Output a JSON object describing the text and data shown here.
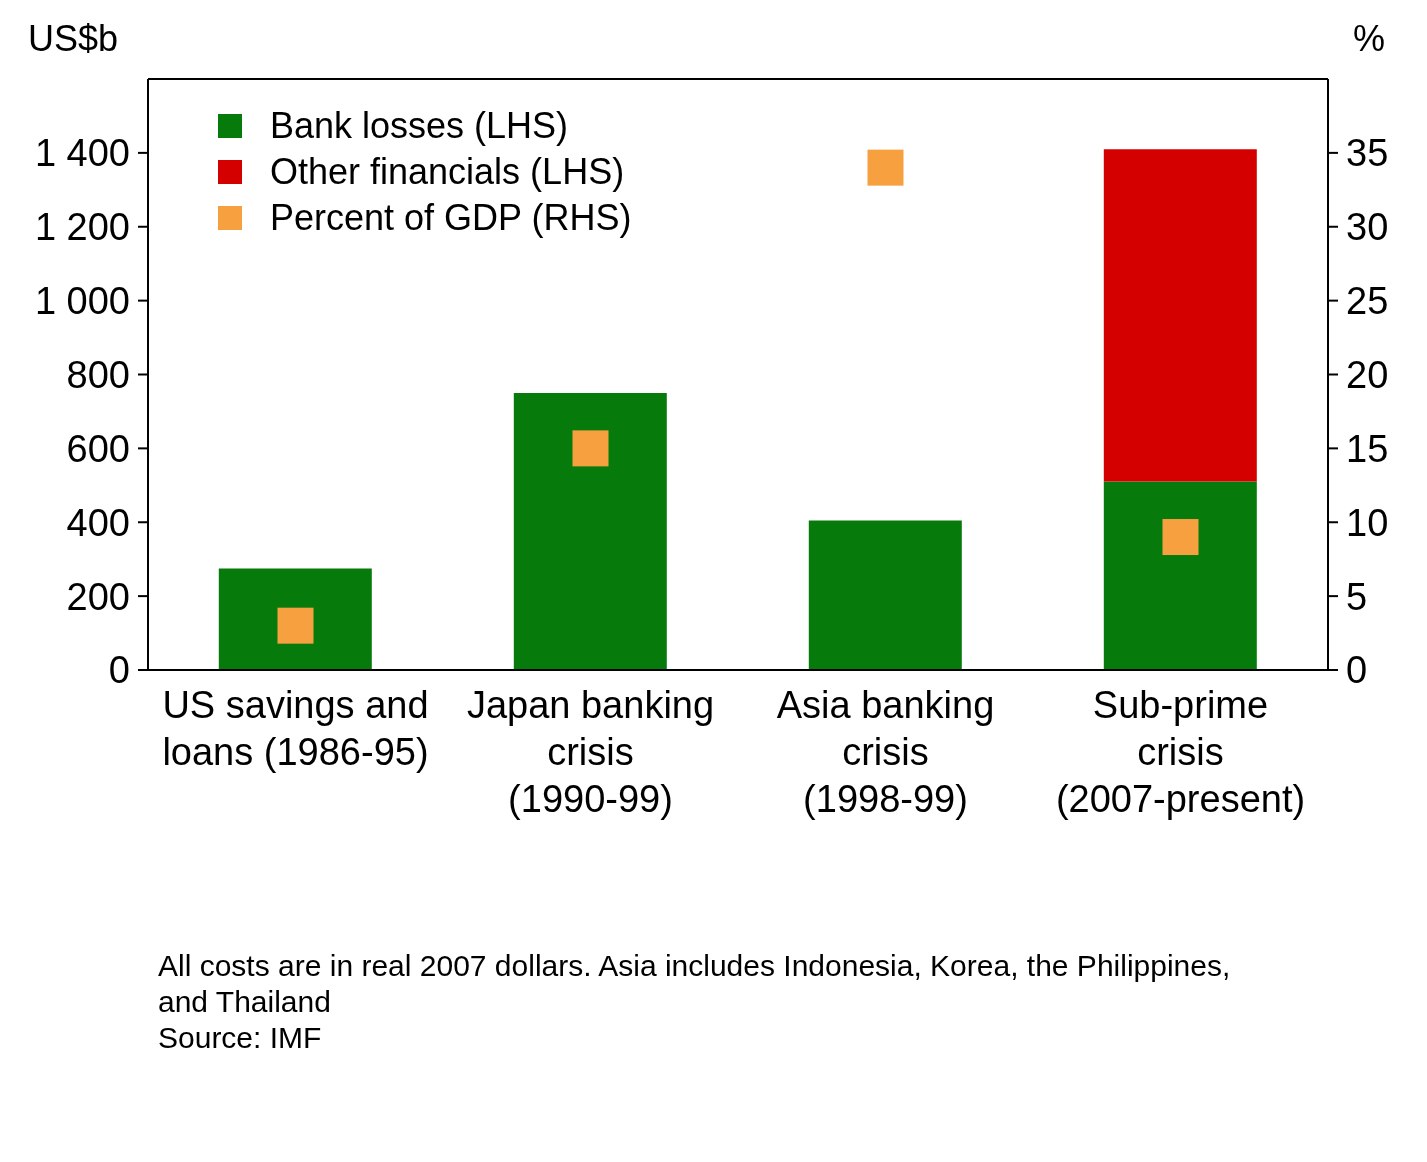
{
  "chart_data": {
    "type": "bar",
    "stacked": true,
    "categories": [
      "US savings and loans (1986-95)",
      "Japan banking crisis (1990-99)",
      "Asia banking crisis (1998-99)",
      "Sub-prime crisis (2007-present)"
    ],
    "series": [
      {
        "name": "Bank losses (LHS)",
        "color": "#067a0a",
        "values": [
          275,
          750,
          405,
          510
        ]
      },
      {
        "name": "Other financials (LHS)",
        "color": "#d40000",
        "values": [
          null,
          null,
          null,
          900
        ]
      },
      {
        "name": "Percent of GDP (RHS)",
        "type": "scatter",
        "axis": "y2",
        "color": "#f7a040",
        "marker": "square",
        "values": [
          3,
          15,
          34,
          9
        ]
      }
    ],
    "ylabel": "US$b",
    "y2label": "%",
    "ylim": [
      0,
      1600
    ],
    "yticks": [
      {
        "value": 0,
        "label": "0"
      },
      {
        "value": 200,
        "label": "200"
      },
      {
        "value": 400,
        "label": "400"
      },
      {
        "value": 600,
        "label": "600"
      },
      {
        "value": 800,
        "label": "800"
      },
      {
        "value": 1000,
        "label": "1 000"
      },
      {
        "value": 1200,
        "label": "1 200"
      },
      {
        "value": 1400,
        "label": "1 400"
      }
    ],
    "y2lim": [
      0,
      40
    ],
    "y2ticks": [
      0,
      5,
      10,
      15,
      20,
      25,
      30,
      35
    ],
    "grid": false,
    "legend": "top left",
    "annotations": [
      "All costs are in real  2007 dollars. Asia includes Indonesia, Korea, the Philippines, and Thailand",
      "Source: IMF"
    ]
  }
}
